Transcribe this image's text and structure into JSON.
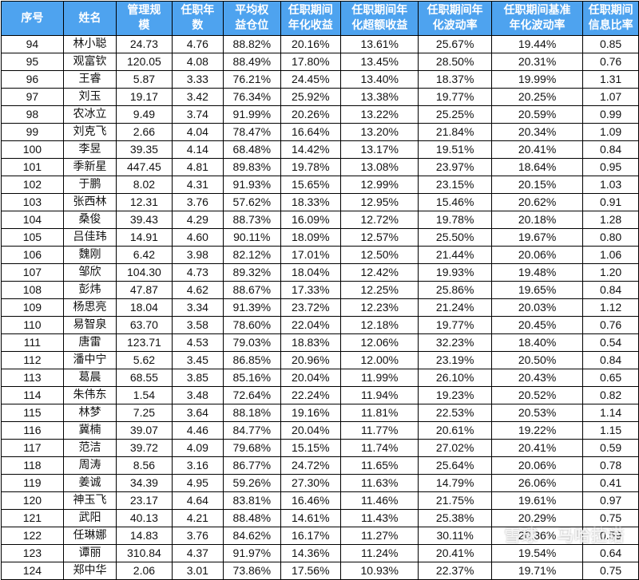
{
  "table": {
    "headers": [
      [
        "序号"
      ],
      [
        "姓名"
      ],
      [
        "管理规",
        "模"
      ],
      [
        "任职年",
        "数"
      ],
      [
        "平均权",
        "益仓位"
      ],
      [
        "任职期间",
        "年化收益"
      ],
      [
        "任职期间年",
        "化超额收益"
      ],
      [
        "任职期间年",
        "化波动率"
      ],
      [
        "任职期间基准",
        "年化波动率"
      ],
      [
        "任职期间",
        "信息比率"
      ]
    ],
    "rows": [
      [
        "94",
        "林小聪",
        "24.73",
        "4.76",
        "88.82%",
        "20.16%",
        "13.61%",
        "25.67%",
        "19.44%",
        "0.85"
      ],
      [
        "95",
        "观富钦",
        "120.05",
        "4.08",
        "88.49%",
        "17.80%",
        "13.45%",
        "28.50%",
        "20.31%",
        "0.76"
      ],
      [
        "96",
        "王睿",
        "5.87",
        "3.33",
        "76.21%",
        "24.45%",
        "13.40%",
        "18.37%",
        "19.99%",
        "1.31"
      ],
      [
        "97",
        "刘玉",
        "19.17",
        "3.42",
        "76.34%",
        "25.92%",
        "13.38%",
        "19.77%",
        "20.25%",
        "1.07"
      ],
      [
        "98",
        "农冰立",
        "9.49",
        "3.74",
        "91.99%",
        "20.26%",
        "13.22%",
        "25.25%",
        "20.59%",
        "0.99"
      ],
      [
        "99",
        "刘克飞",
        "2.66",
        "4.04",
        "78.47%",
        "16.64%",
        "13.20%",
        "21.84%",
        "20.34%",
        "1.09"
      ],
      [
        "100",
        "李昱",
        "39.35",
        "4.14",
        "68.48%",
        "14.42%",
        "13.17%",
        "19.51%",
        "20.41%",
        "0.84"
      ],
      [
        "101",
        "季新星",
        "447.45",
        "4.81",
        "89.83%",
        "19.78%",
        "13.08%",
        "23.97%",
        "18.64%",
        "0.95"
      ],
      [
        "102",
        "于鹏",
        "8.02",
        "4.31",
        "91.93%",
        "15.65%",
        "12.99%",
        "23.15%",
        "20.15%",
        "1.03"
      ],
      [
        "103",
        "张西林",
        "12.31",
        "3.76",
        "57.62%",
        "18.33%",
        "12.95%",
        "15.46%",
        "20.62%",
        "0.91"
      ],
      [
        "104",
        "桑俊",
        "39.43",
        "4.29",
        "88.73%",
        "16.09%",
        "12.72%",
        "19.78%",
        "20.18%",
        "1.28"
      ],
      [
        "105",
        "吕佳玮",
        "14.91",
        "4.60",
        "90.11%",
        "18.09%",
        "12.57%",
        "25.50%",
        "19.67%",
        "0.80"
      ],
      [
        "106",
        "魏刚",
        "6.42",
        "3.98",
        "82.12%",
        "17.01%",
        "12.50%",
        "21.44%",
        "20.06%",
        "1.06"
      ],
      [
        "107",
        "邹欣",
        "104.30",
        "4.73",
        "89.32%",
        "18.04%",
        "12.42%",
        "19.93%",
        "19.48%",
        "1.20"
      ],
      [
        "108",
        "彭炜",
        "47.87",
        "4.62",
        "88.67%",
        "17.33%",
        "12.25%",
        "25.86%",
        "19.65%",
        "0.84"
      ],
      [
        "109",
        "杨思亮",
        "18.04",
        "3.34",
        "91.39%",
        "23.72%",
        "12.23%",
        "21.24%",
        "20.03%",
        "1.12"
      ],
      [
        "110",
        "易智泉",
        "63.70",
        "3.58",
        "78.60%",
        "22.04%",
        "12.18%",
        "19.77%",
        "20.45%",
        "0.76"
      ],
      [
        "111",
        "唐雷",
        "123.71",
        "4.53",
        "79.03%",
        "18.83%",
        "12.06%",
        "32.23%",
        "18.40%",
        "0.54"
      ],
      [
        "112",
        "潘中宁",
        "5.62",
        "3.45",
        "86.85%",
        "20.96%",
        "12.00%",
        "23.19%",
        "20.50%",
        "0.84"
      ],
      [
        "113",
        "葛晨",
        "68.55",
        "3.85",
        "85.16%",
        "20.04%",
        "11.99%",
        "26.10%",
        "20.43%",
        "0.65"
      ],
      [
        "114",
        "朱伟东",
        "1.54",
        "3.48",
        "72.64%",
        "22.24%",
        "11.94%",
        "19.23%",
        "20.52%",
        "0.82"
      ],
      [
        "115",
        "林梦",
        "7.25",
        "3.64",
        "88.18%",
        "19.16%",
        "11.81%",
        "22.53%",
        "20.53%",
        "1.14"
      ],
      [
        "116",
        "冀楠",
        "39.07",
        "4.46",
        "84.77%",
        "20.04%",
        "11.77%",
        "20.61%",
        "19.22%",
        "1.15"
      ],
      [
        "117",
        "范洁",
        "39.72",
        "4.09",
        "79.68%",
        "15.15%",
        "11.74%",
        "27.02%",
        "20.41%",
        "0.59"
      ],
      [
        "118",
        "周涛",
        "8.56",
        "3.16",
        "86.77%",
        "24.72%",
        "11.65%",
        "25.64%",
        "20.06%",
        "0.78"
      ],
      [
        "119",
        "姜诚",
        "34.39",
        "4.95",
        "59.26%",
        "27.30%",
        "11.63%",
        "14.79%",
        "26.06%",
        "0.41"
      ],
      [
        "120",
        "神玉飞",
        "23.17",
        "4.64",
        "83.81%",
        "16.46%",
        "11.46%",
        "21.75%",
        "19.61%",
        "0.97"
      ],
      [
        "121",
        "武阳",
        "40.13",
        "4.21",
        "88.48%",
        "14.61%",
        "11.43%",
        "25.38%",
        "20.29%",
        "0.75"
      ],
      [
        "122",
        "任琳娜",
        "14.83",
        "3.76",
        "84.62%",
        "16.17%",
        "11.27%",
        "30.11%",
        "20.36%",
        "0.59"
      ],
      [
        "123",
        "谭丽",
        "310.84",
        "4.37",
        "91.97%",
        "14.36%",
        "11.24%",
        "20.41%",
        "19.54%",
        "0.64"
      ],
      [
        "124",
        "郑中华",
        "2.06",
        "3.01",
        "73.86%",
        "17.56%",
        "10.93%",
        "22.37%",
        "19.71%",
        "0.75"
      ]
    ]
  },
  "watermark": "雪球 · 马哈拉诺"
}
